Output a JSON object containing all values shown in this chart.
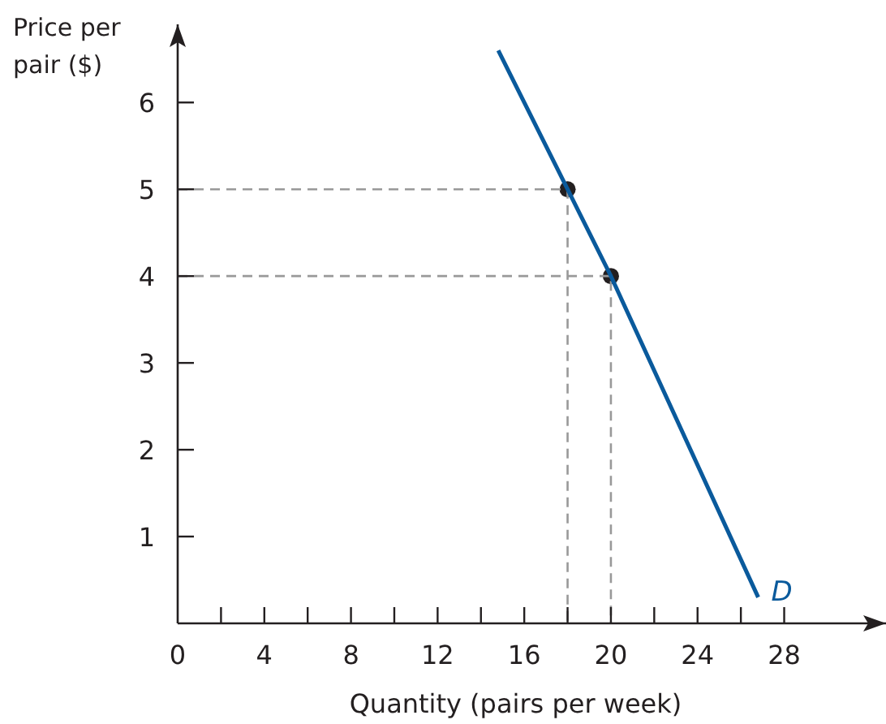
{
  "chart_data": {
    "type": "line",
    "xlabel": "Quantity (pairs per week)",
    "ylabel": "Price per\npair ($)",
    "xlim": [
      0,
      32.7
    ],
    "ylim": [
      0,
      6.9
    ],
    "xticks": [
      0,
      {
        "value": 2,
        "label": null
      },
      4,
      {
        "value": 6,
        "label": null
      },
      8,
      {
        "value": 10,
        "label": null
      },
      12,
      {
        "value": 14,
        "label": null
      },
      16,
      {
        "value": 18,
        "label": null
      },
      20,
      {
        "value": 22,
        "label": null
      },
      24,
      {
        "value": 26,
        "label": null
      },
      28
    ],
    "yticks": [
      1,
      2,
      3,
      4,
      5,
      6
    ],
    "series": [
      {
        "color": "#999999",
        "line_style": "dashed",
        "x": [
          0,
          18,
          18
        ],
        "values": [
          5,
          5,
          0
        ]
      },
      {
        "color": "#999999",
        "line_style": "dashed",
        "x": [
          0,
          20,
          20
        ],
        "values": [
          4,
          4,
          0
        ]
      },
      {
        "color": "#0a5a9c",
        "x": [
          14.8,
          18,
          20,
          26.8
        ],
        "values": [
          6.6,
          5,
          4,
          0.3
        ]
      },
      {
        "type": "scatter",
        "color": "#231f20",
        "x": [
          18,
          20
        ],
        "values": [
          5,
          4
        ],
        "marker": "circle"
      }
    ],
    "annotations": [
      {
        "text": "D",
        "x": 26.8,
        "y": 0.3
      }
    ],
    "grid": false
  }
}
